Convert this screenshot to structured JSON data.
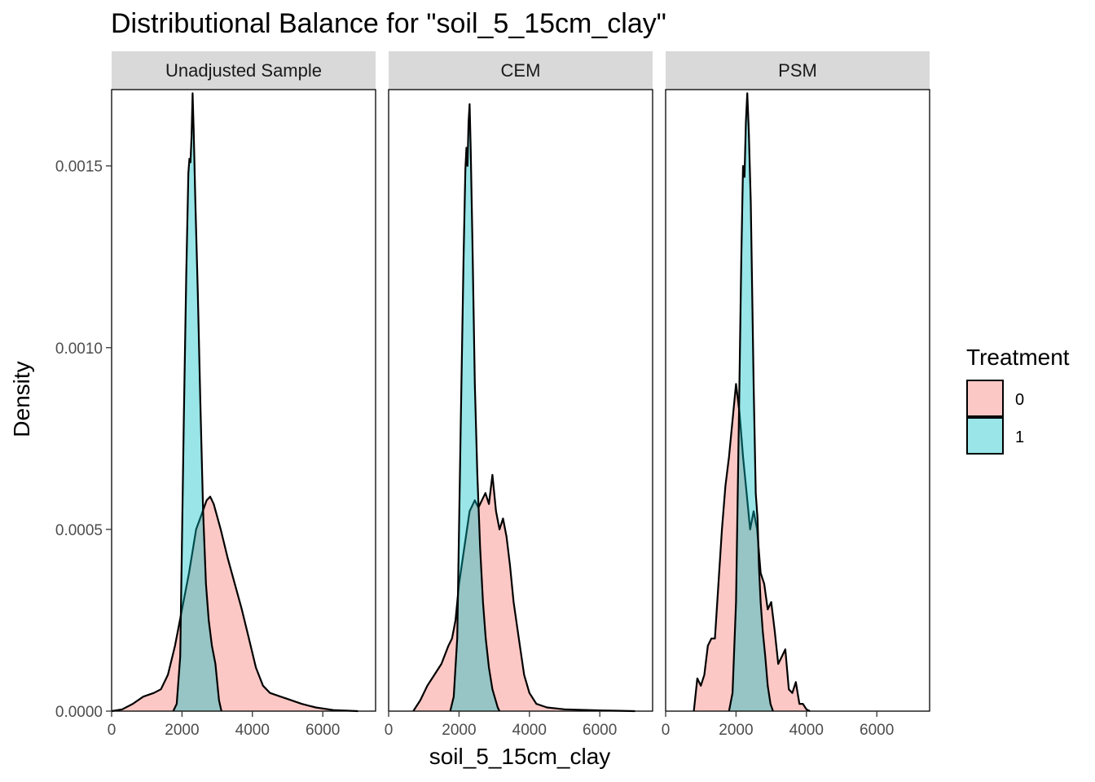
{
  "chart_data": {
    "type": "area",
    "title": "Distributional Balance for \"soil_5_15cm_clay\"",
    "xlabel": "soil_5_15cm_clay",
    "ylabel": "Density",
    "xlim": [
      0,
      7500
    ],
    "ylim": [
      0,
      0.00171
    ],
    "x_ticks": [
      0,
      2000,
      4000,
      6000
    ],
    "x_tick_labels": [
      "0",
      "2000",
      "4000",
      "6000"
    ],
    "y_ticks": [
      0,
      0.0005,
      0.001,
      0.0015
    ],
    "y_tick_labels": [
      "0.0000",
      "0.0005",
      "0.0010",
      "0.0015"
    ],
    "grid": false,
    "legend": {
      "title": "Treatment",
      "position": "right",
      "entries": [
        {
          "label": "0",
          "color": "#F8766D"
        },
        {
          "label": "1",
          "color": "#00BFC4"
        }
      ]
    },
    "fill_alpha": 0.4,
    "panels": [
      {
        "label": "Unadjusted Sample",
        "series": [
          {
            "group": "0",
            "color": "#F8766D",
            "points": [
              [
                0,
                0
              ],
              [
                300,
                5e-06
              ],
              [
                600,
                2e-05
              ],
              [
                900,
                4e-05
              ],
              [
                1200,
                5e-05
              ],
              [
                1400,
                6e-05
              ],
              [
                1600,
                0.0001
              ],
              [
                1800,
                0.00018
              ],
              [
                2000,
                0.00028
              ],
              [
                2200,
                0.00038
              ],
              [
                2400,
                0.0005
              ],
              [
                2550,
                0.00054
              ],
              [
                2700,
                0.00058
              ],
              [
                2800,
                0.00059
              ],
              [
                2900,
                0.00057
              ],
              [
                3100,
                0.0005
              ],
              [
                3300,
                0.00042
              ],
              [
                3500,
                0.00035
              ],
              [
                3700,
                0.00028
              ],
              [
                3900,
                0.0002
              ],
              [
                4100,
                0.00012
              ],
              [
                4300,
                7e-05
              ],
              [
                4500,
                5e-05
              ],
              [
                4800,
                4e-05
              ],
              [
                5100,
                3e-05
              ],
              [
                5400,
                2e-05
              ],
              [
                5800,
                1e-05
              ],
              [
                6300,
                3e-06
              ],
              [
                7000,
                0
              ]
            ]
          },
          {
            "group": "1",
            "color": "#00BFC4",
            "points": [
              [
                1750,
                0
              ],
              [
                1850,
                2e-05
              ],
              [
                1950,
                0.00015
              ],
              [
                2050,
                0.0008
              ],
              [
                2120,
                0.0012
              ],
              [
                2180,
                0.00148
              ],
              [
                2210,
                0.00152
              ],
              [
                2240,
                0.00151
              ],
              [
                2270,
                0.00158
              ],
              [
                2300,
                0.0017
              ],
              [
                2330,
                0.0016
              ],
              [
                2380,
                0.0014
              ],
              [
                2450,
                0.00115
              ],
              [
                2520,
                0.00085
              ],
              [
                2600,
                0.00055
              ],
              [
                2680,
                0.00035
              ],
              [
                2760,
                0.00025
              ],
              [
                2850,
                0.00018
              ],
              [
                2950,
                0.00013
              ],
              [
                3050,
                3e-05
              ],
              [
                3120,
                0
              ]
            ]
          }
        ]
      },
      {
        "label": "CEM",
        "series": [
          {
            "group": "0",
            "color": "#F8766D",
            "points": [
              [
                700,
                0
              ],
              [
                900,
                3e-05
              ],
              [
                1100,
                7e-05
              ],
              [
                1300,
                0.0001
              ],
              [
                1500,
                0.00013
              ],
              [
                1700,
                0.00018
              ],
              [
                1800,
                0.0002
              ],
              [
                1900,
                0.00025
              ],
              [
                2000,
                0.00035
              ],
              [
                2150,
                0.00045
              ],
              [
                2300,
                0.00055
              ],
              [
                2450,
                0.00058
              ],
              [
                2550,
                0.00056
              ],
              [
                2650,
                0.00058
              ],
              [
                2750,
                0.0006
              ],
              [
                2850,
                0.00057
              ],
              [
                2950,
                0.00065
              ],
              [
                3050,
                0.00055
              ],
              [
                3150,
                0.0005
              ],
              [
                3250,
                0.00053
              ],
              [
                3350,
                0.00048
              ],
              [
                3450,
                0.0004
              ],
              [
                3550,
                0.0003
              ],
              [
                3700,
                0.0002
              ],
              [
                3850,
                0.0001
              ],
              [
                4000,
                5e-05
              ],
              [
                4200,
                2e-05
              ],
              [
                4500,
                1e-05
              ],
              [
                5000,
                5e-06
              ],
              [
                6000,
                2e-06
              ],
              [
                7000,
                0
              ]
            ]
          },
          {
            "group": "1",
            "color": "#00BFC4",
            "points": [
              [
                1750,
                0
              ],
              [
                1850,
                4e-05
              ],
              [
                1950,
                0.0002
              ],
              [
                2050,
                0.0008
              ],
              [
                2130,
                0.00125
              ],
              [
                2180,
                0.00149
              ],
              [
                2210,
                0.00155
              ],
              [
                2240,
                0.0015
              ],
              [
                2270,
                0.00162
              ],
              [
                2300,
                0.00167
              ],
              [
                2330,
                0.00155
              ],
              [
                2380,
                0.0013
              ],
              [
                2450,
                0.0009
              ],
              [
                2520,
                0.00065
              ],
              [
                2600,
                0.00045
              ],
              [
                2680,
                0.0003
              ],
              [
                2760,
                0.0002
              ],
              [
                2850,
                0.00012
              ],
              [
                2950,
                6e-05
              ],
              [
                3100,
                1e-05
              ],
              [
                3150,
                0
              ]
            ]
          }
        ]
      },
      {
        "label": "PSM",
        "series": [
          {
            "group": "0",
            "color": "#F8766D",
            "points": [
              [
                800,
                0
              ],
              [
                900,
                9e-05
              ],
              [
                1000,
                7e-05
              ],
              [
                1100,
                0.0001
              ],
              [
                1200,
                0.00018
              ],
              [
                1300,
                0.0002
              ],
              [
                1400,
                0.0002
              ],
              [
                1500,
                0.00035
              ],
              [
                1600,
                0.0005
              ],
              [
                1700,
                0.00062
              ],
              [
                1800,
                0.0007
              ],
              [
                1900,
                0.0008
              ],
              [
                2000,
                0.0009
              ],
              [
                2100,
                0.00082
              ],
              [
                2200,
                0.0007
              ],
              [
                2300,
                0.0006
              ],
              [
                2400,
                0.0005
              ],
              [
                2500,
                0.00055
              ],
              [
                2600,
                0.0005
              ],
              [
                2700,
                0.00038
              ],
              [
                2800,
                0.00035
              ],
              [
                2900,
                0.00028
              ],
              [
                3000,
                0.0003
              ],
              [
                3100,
                0.00022
              ],
              [
                3200,
                0.00013
              ],
              [
                3300,
                0.00015
              ],
              [
                3400,
                0.00017
              ],
              [
                3500,
                6e-05
              ],
              [
                3600,
                5e-05
              ],
              [
                3700,
                8e-05
              ],
              [
                3800,
                2e-05
              ],
              [
                3900,
                2e-05
              ],
              [
                4000,
                5e-06
              ],
              [
                4100,
                0
              ]
            ]
          },
          {
            "group": "1",
            "color": "#00BFC4",
            "points": [
              [
                1800,
                0
              ],
              [
                1900,
                5e-05
              ],
              [
                2000,
                0.0003
              ],
              [
                2080,
                0.0008
              ],
              [
                2150,
                0.00125
              ],
              [
                2200,
                0.0015
              ],
              [
                2240,
                0.00147
              ],
              [
                2280,
                0.00162
              ],
              [
                2320,
                0.0017
              ],
              [
                2360,
                0.0016
              ],
              [
                2420,
                0.0014
              ],
              [
                2500,
                0.0009
              ],
              [
                2560,
                0.0006
              ],
              [
                2610,
                0.00053
              ],
              [
                2650,
                0.0004
              ],
              [
                2700,
                0.0003
              ],
              [
                2760,
                0.00022
              ],
              [
                2830,
                0.00015
              ],
              [
                2900,
                7e-05
              ],
              [
                2980,
                2e-05
              ],
              [
                3050,
                0
              ]
            ]
          }
        ]
      }
    ]
  }
}
